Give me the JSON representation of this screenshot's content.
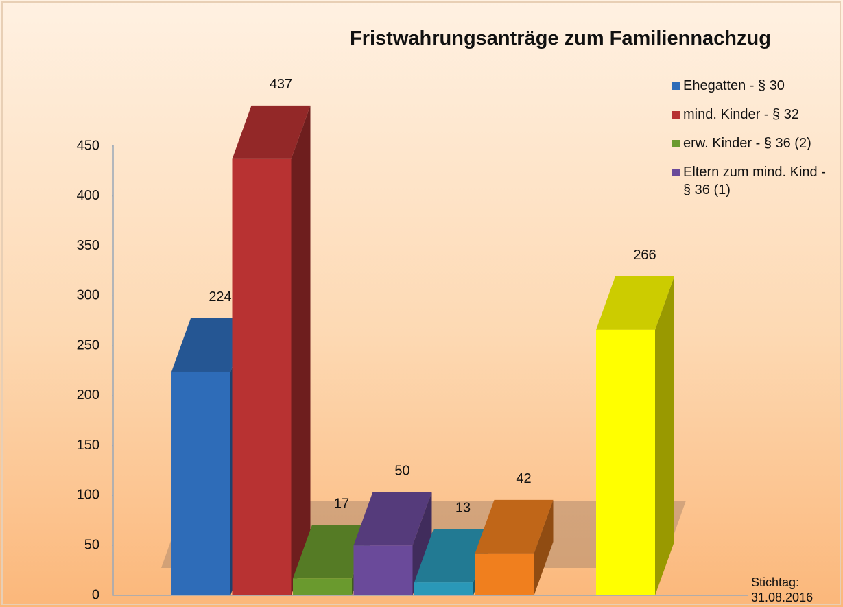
{
  "chart_data": {
    "type": "bar3d",
    "title": "Fristwahrungsanträge zum Familiennachzug",
    "series": [
      {
        "name": "Ehegatten - § 30",
        "color": "#2e6cb8",
        "values": [
          224
        ]
      },
      {
        "name": "mind. Kinder - § 32",
        "color": "#b83232",
        "values": [
          437
        ]
      },
      {
        "name": "erw. Kinder - § 36 (2)",
        "color": "#6a9a2e",
        "values": [
          17
        ]
      },
      {
        "name": "Eltern zum mind. Kind - § 36 (1)",
        "color": "#6a4a9a",
        "values": [
          50
        ]
      },
      {
        "color": "#2a98b8",
        "values": [
          13
        ]
      },
      {
        "color": "#f07f1e",
        "values": [
          42
        ]
      },
      {
        "color": "#ffff00",
        "values": [
          266
        ]
      }
    ],
    "ylim": [
      0,
      450
    ],
    "yticks": [
      0,
      50,
      100,
      150,
      200,
      250,
      300,
      350,
      400,
      450
    ],
    "annotation": "Stichtag: 31.08.2016"
  }
}
